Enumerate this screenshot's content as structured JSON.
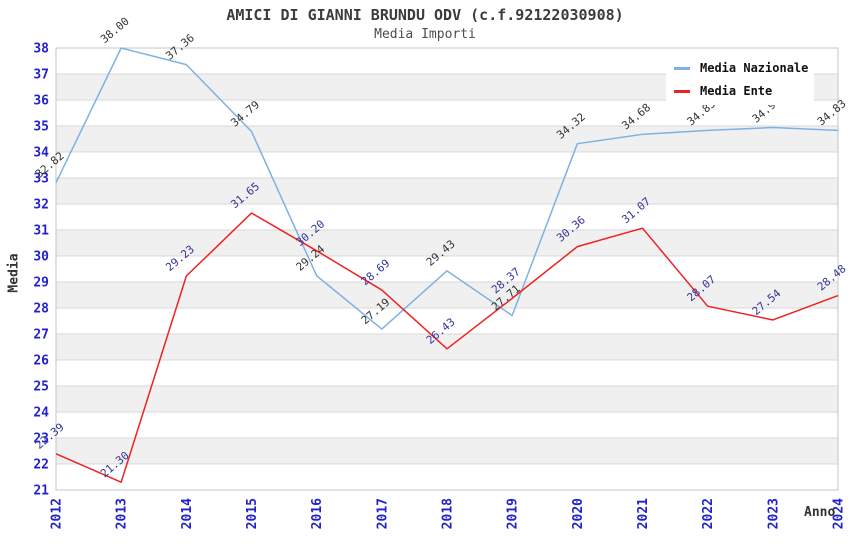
{
  "page": {
    "title": "AMICI DI GIANNI BRUNDU ODV (c.f.92122030908)",
    "subtitle": "Media Importi"
  },
  "axes": {
    "x_title": "Anno",
    "y_title": "Media"
  },
  "legend": {
    "position": "top-right",
    "items": [
      {
        "label": "Media Nazionale",
        "color": "#7FB1E3"
      },
      {
        "label": "Media Ente",
        "color": "#EE2222"
      }
    ]
  },
  "chart_data": {
    "type": "line",
    "title": "AMICI DI GIANNI BRUNDU ODV (c.f.92122030908)",
    "subtitle": "Media Importi",
    "xlabel": "Anno",
    "ylabel": "Media",
    "x": [
      2012,
      2013,
      2014,
      2015,
      2016,
      2017,
      2018,
      2019,
      2020,
      2021,
      2022,
      2023,
      2024
    ],
    "ylim": [
      21,
      38
    ],
    "y_tick_step": 1,
    "grid": "horizontal-lines-with-alternating-bands",
    "legend_position": "top-right",
    "series": [
      {
        "name": "Media Nazionale",
        "color": "#7FB1E3",
        "label_color": "#333333",
        "values": [
          32.82,
          38.0,
          37.36,
          34.79,
          29.24,
          27.19,
          29.43,
          27.71,
          34.32,
          34.68,
          34.83,
          34.94,
          34.83
        ]
      },
      {
        "name": "Media Ente",
        "color": "#EE2222",
        "label_color": "#333399",
        "values": [
          22.39,
          21.3,
          29.23,
          31.65,
          30.2,
          28.69,
          26.43,
          28.37,
          30.36,
          31.07,
          28.07,
          27.54,
          28.48
        ]
      }
    ],
    "colors": {
      "tick_label": "#2222CC",
      "grid_line": "#D8D8D8",
      "band": "#F0F0F0",
      "frame": "#C6C6C6"
    }
  }
}
